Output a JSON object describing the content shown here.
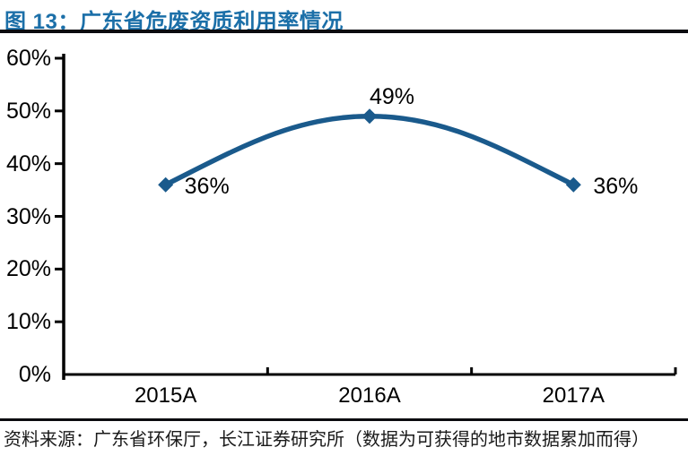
{
  "header": {
    "title": "图 13：广东省危废资质利用率情况",
    "title_color": "#1B6FA8"
  },
  "footer": {
    "source": "资料来源：广东省环保厅，长江证券研究所（数据为可获得的地市数据累加而得）"
  },
  "chart_data": {
    "type": "line",
    "title": "图 13：广东省危废资质利用率情况",
    "categories": [
      "2015A",
      "2016A",
      "2017A"
    ],
    "values": [
      36,
      49,
      36
    ],
    "data_labels": [
      "36%",
      "49%",
      "36%"
    ],
    "y_tick_values": [
      0,
      10,
      20,
      30,
      40,
      50,
      60
    ],
    "y_tick_labels": [
      "0%",
      "10%",
      "20%",
      "30%",
      "40%",
      "50%",
      "60%"
    ],
    "ylim": [
      0,
      60
    ],
    "xlabel": "",
    "ylabel": "",
    "legend": "none",
    "grid": false,
    "smooth": true,
    "marker": "diamond",
    "line_color": "#1A5A8C",
    "marker_color": "#1A5A8C",
    "axis_color": "#000000",
    "label_color": "#000000"
  }
}
